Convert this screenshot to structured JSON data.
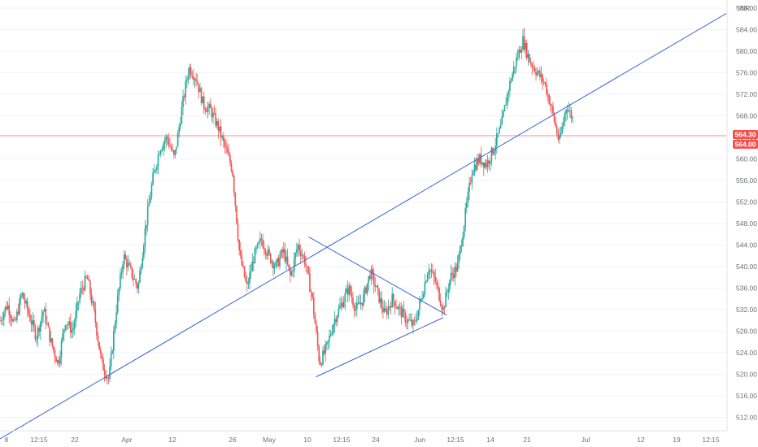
{
  "chart_data": {
    "type": "candlestick",
    "currency": "INR",
    "y_ticks": [
      "512.00",
      "516.00",
      "520.00",
      "524.00",
      "528.00",
      "532.00",
      "536.00",
      "540.00",
      "544.00",
      "548.00",
      "552.00",
      "556.00",
      "560.00",
      "564.00",
      "568.00",
      "572.00",
      "576.00",
      "580.00",
      "584.00",
      "588.00"
    ],
    "ylim": [
      509.5,
      589.5
    ],
    "x_ticks": [
      "8",
      "12:15",
      "22",
      "Apr",
      "12",
      "26",
      "May",
      "10",
      "12:15",
      "24",
      "Jun",
      "12:15",
      "14",
      "21",
      "Jul",
      "12",
      "19",
      "12:15"
    ],
    "current_price_tags": [
      "564.30",
      "564.00"
    ],
    "colors": {
      "up": "#26a69a",
      "down": "#ef5350",
      "trendline": "#3b63d6",
      "price_line": "#f28b82"
    },
    "trendlines": [
      {
        "name": "rising-support",
        "from": {
          "x": 0.0,
          "y": 508.0
        },
        "to": {
          "x": 100.0,
          "y": 587.0
        }
      },
      {
        "name": "triangle-upper",
        "from": {
          "x": 42.5,
          "y": 545.5
        },
        "to": {
          "x": 61.5,
          "y": 531.0
        }
      },
      {
        "name": "triangle-lower",
        "from": {
          "x": 43.5,
          "y": 519.5
        },
        "to": {
          "x": 61.0,
          "y": 530.5
        }
      }
    ],
    "price_path": [
      [
        0,
        530
      ],
      [
        1,
        533
      ],
      [
        2,
        529
      ],
      [
        3,
        535
      ],
      [
        4,
        531
      ],
      [
        5,
        527
      ],
      [
        6,
        532
      ],
      [
        7,
        526
      ],
      [
        8,
        522
      ],
      [
        9,
        530
      ],
      [
        10,
        528
      ],
      [
        11,
        535
      ],
      [
        12,
        538
      ],
      [
        13,
        531
      ],
      [
        14,
        522
      ],
      [
        15,
        519
      ],
      [
        16,
        532
      ],
      [
        17,
        542
      ],
      [
        18,
        539
      ],
      [
        19,
        536
      ],
      [
        20,
        547
      ],
      [
        21,
        556
      ],
      [
        22,
        562
      ],
      [
        23,
        564
      ],
      [
        24,
        560
      ],
      [
        25,
        569
      ],
      [
        26,
        577
      ],
      [
        27,
        575
      ],
      [
        28,
        570
      ],
      [
        29,
        569
      ],
      [
        30,
        566
      ],
      [
        31,
        562
      ],
      [
        32,
        558
      ],
      [
        33,
        542
      ],
      [
        34,
        536
      ],
      [
        35,
        542
      ],
      [
        36,
        545
      ],
      [
        37,
        542
      ],
      [
        38,
        540
      ],
      [
        39,
        543
      ],
      [
        40,
        538
      ],
      [
        41,
        544
      ],
      [
        42,
        541
      ],
      [
        43,
        534
      ],
      [
        44,
        522
      ],
      [
        45,
        525
      ],
      [
        46,
        530
      ],
      [
        47,
        533
      ],
      [
        48,
        536
      ],
      [
        49,
        532
      ],
      [
        50,
        534
      ],
      [
        51,
        539
      ],
      [
        52,
        535
      ],
      [
        53,
        531
      ],
      [
        54,
        534
      ],
      [
        55,
        532
      ],
      [
        56,
        530
      ],
      [
        57,
        529
      ],
      [
        58,
        534
      ],
      [
        59,
        540
      ],
      [
        60,
        537
      ],
      [
        61,
        532
      ],
      [
        62,
        538
      ],
      [
        63,
        540
      ],
      [
        64,
        549
      ],
      [
        65,
        558
      ],
      [
        66,
        560
      ],
      [
        67,
        559
      ],
      [
        68,
        562
      ],
      [
        69,
        566
      ],
      [
        70,
        573
      ],
      [
        71,
        578
      ],
      [
        72,
        582
      ],
      [
        73,
        578
      ],
      [
        74,
        576
      ],
      [
        75,
        574
      ],
      [
        76,
        569
      ],
      [
        77,
        563
      ],
      [
        78,
        570
      ],
      [
        79,
        567
      ]
    ]
  }
}
